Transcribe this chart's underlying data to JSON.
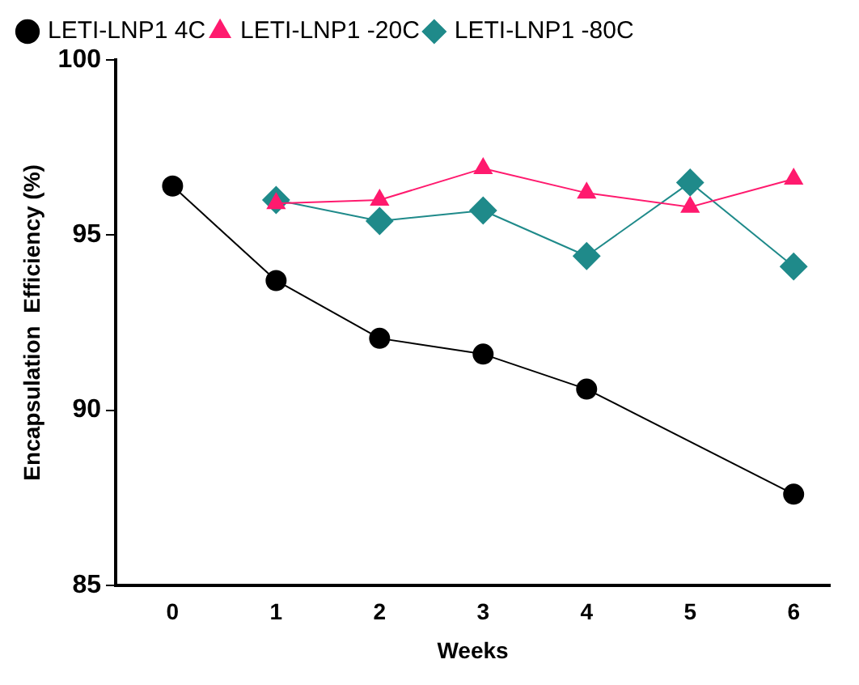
{
  "chart_data": {
    "type": "line",
    "xlabel": "Weeks",
    "ylabel": "Encapsulation  Efficiency (%)",
    "xlim": [
      -0.55,
      6.35
    ],
    "xticks": [
      0,
      1,
      2,
      3,
      4,
      5,
      6
    ],
    "ylim": [
      85,
      100
    ],
    "yticks": [
      85,
      90,
      95,
      100
    ],
    "grid": false,
    "legend": "top left",
    "series": [
      {
        "name": "LETI-LNP1 4C",
        "color": "#000000",
        "marker": "circle",
        "x": [
          0,
          1,
          2,
          3,
          4,
          6
        ],
        "values": [
          96.4,
          93.7,
          92.05,
          91.6,
          90.6,
          87.6
        ]
      },
      {
        "name": "LETI-LNP1 -20C",
        "color": "#ff1a6e",
        "marker": "triangle",
        "x": [
          1,
          2,
          3,
          4,
          5,
          6
        ],
        "values": [
          95.9,
          96.0,
          96.9,
          96.2,
          95.8,
          96.6
        ]
      },
      {
        "name": "LETI-LNP1 -80C",
        "color": "#1f8a8a",
        "marker": "diamond",
        "x": [
          1,
          2,
          3,
          4,
          5,
          6
        ],
        "values": [
          96.0,
          95.4,
          95.7,
          94.4,
          96.5,
          94.1
        ]
      }
    ]
  }
}
